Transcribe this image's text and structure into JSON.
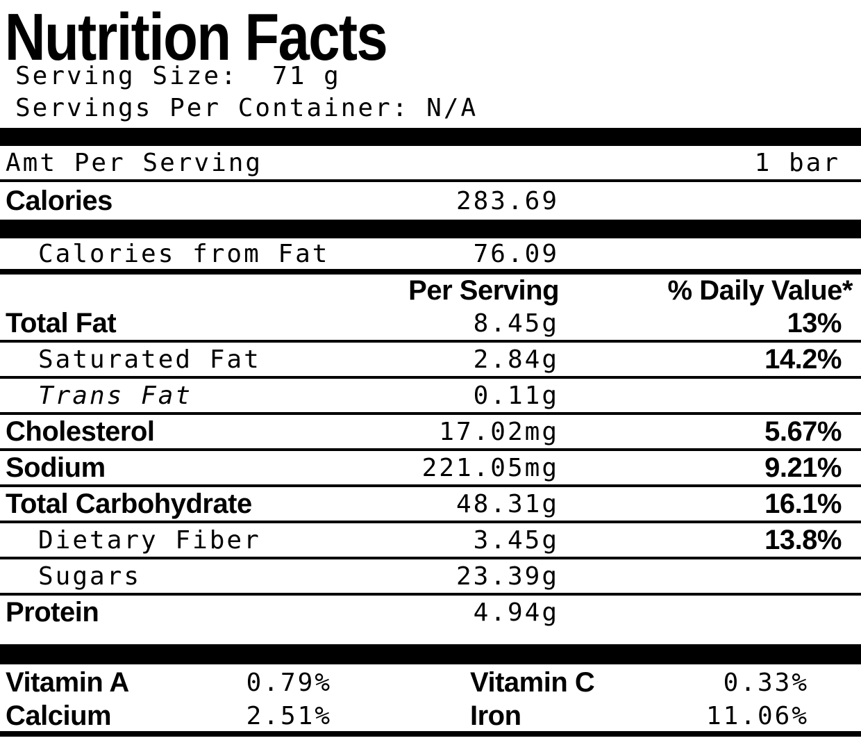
{
  "title": "Nutrition Facts",
  "serving": {
    "size_line": "Serving Size:  71 g",
    "per_container_line": "Servings Per Container: N/A"
  },
  "amt_header": {
    "label": "Amt Per Serving",
    "unit": "1 bar"
  },
  "calories": {
    "label": "Calories",
    "value": "283.69",
    "from_fat_label": "Calories from Fat",
    "from_fat_value": "76.09"
  },
  "columns": {
    "per_serving": "Per Serving",
    "daily_value": "% Daily Value*"
  },
  "nutrients": [
    {
      "label": "Total Fat",
      "amount": "8.45g",
      "dv": "13%"
    },
    {
      "label": "Saturated Fat",
      "amount": "2.84g",
      "dv": "14.2%"
    },
    {
      "label": "Trans Fat",
      "amount": "0.11g",
      "dv": ""
    },
    {
      "label": "Cholesterol",
      "amount": "17.02mg",
      "dv": "5.67%"
    },
    {
      "label": "Sodium",
      "amount": "221.05mg",
      "dv": "9.21%"
    },
    {
      "label": "Total Carbohydrate",
      "amount": "48.31g",
      "dv": "16.1%"
    },
    {
      "label": "Dietary Fiber",
      "amount": "3.45g",
      "dv": "13.8%"
    },
    {
      "label": "Sugars",
      "amount": "23.39g",
      "dv": ""
    },
    {
      "label": "Protein",
      "amount": "4.94g",
      "dv": ""
    }
  ],
  "vitamins": [
    {
      "label": "Vitamin A",
      "value": "0.79%"
    },
    {
      "label": "Vitamin C",
      "value": "0.33%"
    },
    {
      "label": "Calcium",
      "value": "2.51%"
    },
    {
      "label": "Iron",
      "value": "11.06%"
    }
  ],
  "colors": {
    "ink": "#000000",
    "background": "#ffffff"
  }
}
